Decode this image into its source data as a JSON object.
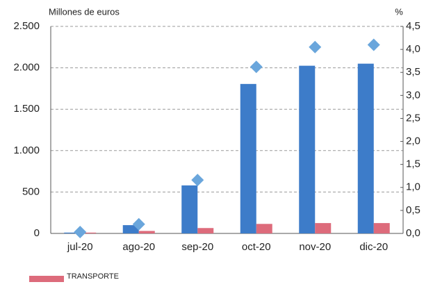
{
  "chart_data": {
    "type": "bar",
    "y_label": "Millones de euros",
    "y2_label": "%",
    "categories": [
      "jul-20",
      "ago-20",
      "sep-20",
      "oct-20",
      "nov-20",
      "dic-20"
    ],
    "series": [
      {
        "color": "#3d7cc9",
        "values": [
          10,
          100,
          580,
          1805,
          2025,
          2050
        ]
      },
      {
        "name": "TRANSPORTE",
        "color": "#dd6b7b",
        "values": [
          10,
          30,
          65,
          115,
          125,
          125
        ]
      },
      {
        "type": "scatter",
        "marker": "diamond",
        "axis": "y2",
        "color": "#6aa6dc",
        "values": [
          0.03,
          0.2,
          1.16,
          3.62,
          4.05,
          4.1
        ]
      }
    ],
    "ylim": [
      0,
      2500
    ],
    "yticks": [
      0,
      500,
      {
        "value": 1000,
        "label": "1.000"
      },
      {
        "value": 1500,
        "label": "1.500"
      },
      {
        "value": 2000,
        "label": "2.000"
      },
      {
        "value": 2500,
        "label": "2.500"
      }
    ],
    "y2lim": [
      0,
      4.5
    ],
    "y2ticks": [
      {
        "value": 0,
        "label": "0,0"
      },
      {
        "value": 0.5,
        "label": "0,5"
      },
      {
        "value": 1,
        "label": "1,0"
      },
      {
        "value": 1.5,
        "label": "1,5"
      },
      {
        "value": 2,
        "label": "2,0"
      },
      {
        "value": 2.5,
        "label": "2,5"
      },
      {
        "value": 3,
        "label": "3,0"
      },
      {
        "value": 3.5,
        "label": "3,5"
      },
      {
        "value": 4,
        "label": "4,0"
      },
      {
        "value": 4.5,
        "label": "4,5"
      }
    ],
    "grid": true,
    "legend": "bottom-left"
  }
}
